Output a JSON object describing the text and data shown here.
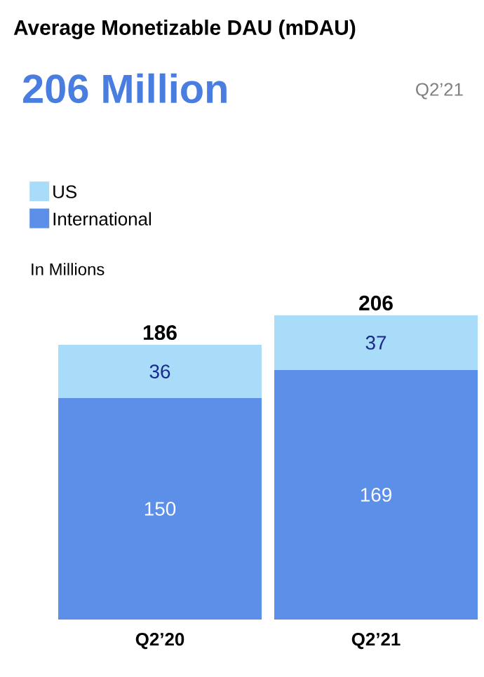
{
  "chart_data": {
    "type": "bar",
    "title": "Average Monetizable DAU (mDAU)",
    "subtitle": "206 Million",
    "annotations": [
      "Q2’21",
      "In Millions"
    ],
    "categories": [
      "Q2’20",
      "Q2’21"
    ],
    "series": [
      {
        "name": "International",
        "color": "#5b8fe8",
        "values": [
          150,
          169
        ]
      },
      {
        "name": "US",
        "color": "#a8dcf8",
        "values": [
          36,
          37
        ]
      }
    ],
    "stacked": true,
    "data_labels": true,
    "totals": [
      "186",
      "206"
    ],
    "legend": "top left"
  }
}
